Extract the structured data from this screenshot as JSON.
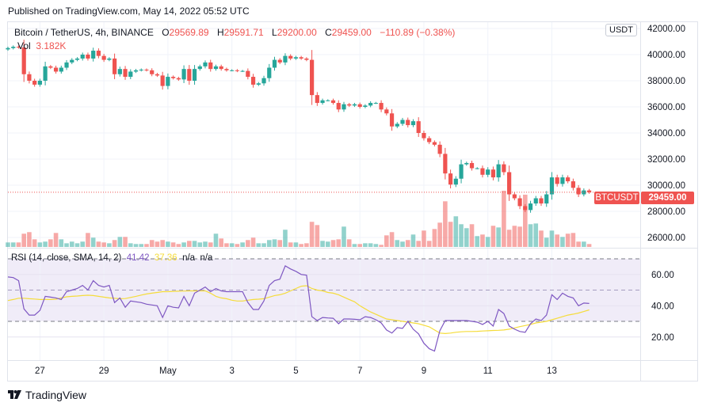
{
  "published": "Published on TradingView.com, May 14, 2022 05:52 UTC",
  "header": {
    "symbol": "Bitcoin / TetherUS, 4h, BINANCE",
    "o_label": "O",
    "o_value": "29569.89",
    "h_label": "H",
    "h_value": "29591.71",
    "l_label": "L",
    "l_value": "29200.00",
    "c_label": "C",
    "c_value": "29459.00",
    "change": "−110.89 (−0.38%)",
    "vol_label": "Vol",
    "vol_value": "3.182K"
  },
  "rsi_legend": {
    "label": "RSI (14, close, SMA, 14, 2)",
    "rsi": "41.42",
    "sma": "37.36",
    "na1": "n/a",
    "na2": "n/a"
  },
  "currency_button": "USDT",
  "last_price": {
    "symbol": "BTCUSDT",
    "value": "29459.00"
  },
  "brand": "TradingView",
  "colors": {
    "up": "#26a69a",
    "down": "#ef5350",
    "rsi": "#7e57c2",
    "rsi_sma": "#f5dc3a",
    "rsi_band": "#f0ecf8"
  },
  "chart_data": [
    {
      "type": "candlestick",
      "interval": "4h",
      "first_open": 40400,
      "close": [
        40500,
        40600,
        40550,
        38500,
        38000,
        37700,
        38000,
        39100,
        39000,
        38700,
        39000,
        39400,
        39600,
        39700,
        40000,
        39700,
        40300,
        39900,
        39600,
        39700,
        38500,
        38900,
        38300,
        38700,
        38800,
        38850,
        38800,
        38500,
        38400,
        37600,
        38300,
        38200,
        38100,
        38900,
        38000,
        38900,
        39100,
        39400,
        38900,
        39100,
        38900,
        38800,
        38800,
        38750,
        38750,
        38300,
        37700,
        37800,
        38200,
        39000,
        39600,
        39400,
        39900,
        39700,
        39800,
        39700,
        39600,
        36900,
        36300,
        36500,
        36500,
        36300,
        35800,
        36200,
        36100,
        36200,
        36000,
        36100,
        36300,
        36300,
        35800,
        35500,
        34500,
        34700,
        35000,
        34600,
        34900,
        34000,
        33600,
        33300,
        33100,
        32400,
        30900,
        30050,
        30500,
        31600,
        31700,
        31300,
        31300,
        30800,
        31200,
        30600,
        31600,
        31000,
        29300,
        29000,
        28400,
        28100,
        28600,
        29000,
        28600,
        29300,
        30600,
        30100,
        30600,
        30300,
        29800,
        29300,
        29600,
        29459
      ],
      "volume_k": [
        4.9,
        4.9,
        4.9,
        14.4,
        16.1,
        8.3,
        4.9,
        5.8,
        8.3,
        15.2,
        8.3,
        4.0,
        5.8,
        4.0,
        5.8,
        15.2,
        10.1,
        5.8,
        4.9,
        4.0,
        7.5,
        10.9,
        10.9,
        4.0,
        3.2,
        3.2,
        3.2,
        7.5,
        5.8,
        7.5,
        5.8,
        4.9,
        3.2,
        4.9,
        6.6,
        6.6,
        4.9,
        5.8,
        4.9,
        14.4,
        9.2,
        4.0,
        4.0,
        3.2,
        4.9,
        7.5,
        10.1,
        4.0,
        4.0,
        7.5,
        8.3,
        7.5,
        18.7,
        4.9,
        4.9,
        3.2,
        4.0,
        27.3,
        23.8,
        6.6,
        5.8,
        7.5,
        8.3,
        22.1,
        8.3,
        3.2,
        3.2,
        4.0,
        4.0,
        3.2,
        2.3,
        12.6,
        16.1,
        7.5,
        5.8,
        7.5,
        13.5,
        6.6,
        17.8,
        6.6,
        19.5,
        26.4,
        49.6,
        27.3,
        33.3,
        24.7,
        20.4,
        24.7,
        11.8,
        13.5,
        10.9,
        23.0,
        21.2,
        61.1,
        18.7,
        23.0,
        22.1,
        56.8,
        24.7,
        25.5,
        17.8,
        10.1,
        17.8,
        13.5,
        10.9,
        14.4,
        15.2,
        5.8,
        5.8,
        3.182
      ],
      "y_ticks": [
        "42000.00",
        "40000.00",
        "38000.00",
        "36000.00",
        "34000.00",
        "32000.00",
        "30000.00",
        "28000.00",
        "26000.00"
      ],
      "y_tick_values": [
        42000,
        40000,
        38000,
        36000,
        34000,
        32000,
        30000,
        28000,
        26000
      ],
      "x_ticks": [
        {
          "label": "27",
          "index": 6
        },
        {
          "label": "29",
          "index": 18
        },
        {
          "label": "May",
          "index": 30
        },
        {
          "label": "3",
          "index": 42
        },
        {
          "label": "5",
          "index": 54
        },
        {
          "label": "7",
          "index": 66
        },
        {
          "label": "9",
          "index": 78
        },
        {
          "label": "11",
          "index": 90
        },
        {
          "label": "13",
          "index": 102
        }
      ],
      "grid": true
    },
    {
      "type": "line",
      "series": [
        {
          "name": "RSI",
          "values": [
            58.4,
            58,
            56,
            38,
            34,
            34,
            37,
            46,
            45.5,
            45,
            44,
            49,
            50,
            51,
            53,
            50,
            56,
            53,
            52,
            53,
            42,
            45,
            39,
            43,
            42.5,
            42,
            41,
            40.5,
            40,
            32.5,
            40,
            39,
            38.6,
            46,
            40,
            48,
            50,
            52,
            49,
            51,
            49.5,
            49,
            49,
            49,
            49,
            42,
            37.6,
            37.6,
            43,
            53,
            56,
            57,
            65.5,
            63.5,
            62,
            60,
            59.5,
            33,
            30.5,
            32.5,
            32.2,
            32,
            28.5,
            31.5,
            31.5,
            31.3,
            31,
            33,
            32.5,
            31,
            29,
            24.5,
            22.5,
            26,
            25.5,
            30,
            25,
            22,
            16,
            12.5,
            11,
            24,
            30.5,
            30.5,
            30.5,
            30.5,
            30.5,
            30,
            29.5,
            28,
            30,
            27,
            37.6,
            35,
            27,
            25,
            23.5,
            23,
            28.5,
            31.5,
            30.5,
            34,
            47,
            44,
            48,
            46,
            45,
            40,
            41.7,
            41.42
          ]
        },
        {
          "name": "SMA",
          "values": [
            43.3,
            44,
            44.8,
            44.8,
            44.5,
            44.3,
            44,
            44,
            44,
            44.2,
            45,
            45.7,
            46,
            46.2,
            46.5,
            46.7,
            46.5,
            46,
            45.5,
            45,
            44.8,
            44.5,
            44.6,
            45.3,
            46,
            46.8,
            47.5,
            48,
            48.5,
            49,
            49,
            49.2,
            49.3,
            49.4,
            49.5,
            49.5,
            49.5,
            49.5,
            48,
            46,
            45,
            44.5,
            43.5,
            43,
            43,
            43.5,
            44,
            44.2,
            44.5,
            45.5,
            46.5,
            47,
            48,
            49.5,
            51,
            52.5,
            52.8,
            51,
            50,
            49.5,
            48.5,
            48,
            47,
            45.5,
            44,
            42.5,
            40,
            38,
            36,
            34.5,
            33,
            31.5,
            31,
            30.5,
            30,
            29.5,
            29,
            28.5,
            27.5,
            26.5,
            24.5,
            22.5,
            22.2,
            22.5,
            23,
            23.3,
            23.5,
            23.5,
            23.6,
            23.8,
            24,
            24.2,
            24.3,
            24.5,
            25,
            25.8,
            26.6,
            27.3,
            28,
            29,
            29.5,
            30,
            31,
            32,
            33,
            34,
            34.6,
            35.3,
            36.3,
            37.36
          ]
        }
      ],
      "y_ticks": [
        "60.00",
        "40.00",
        "20.00"
      ],
      "y_tick_values": [
        60,
        40,
        20
      ],
      "bands": [
        70,
        50,
        30
      ]
    }
  ]
}
